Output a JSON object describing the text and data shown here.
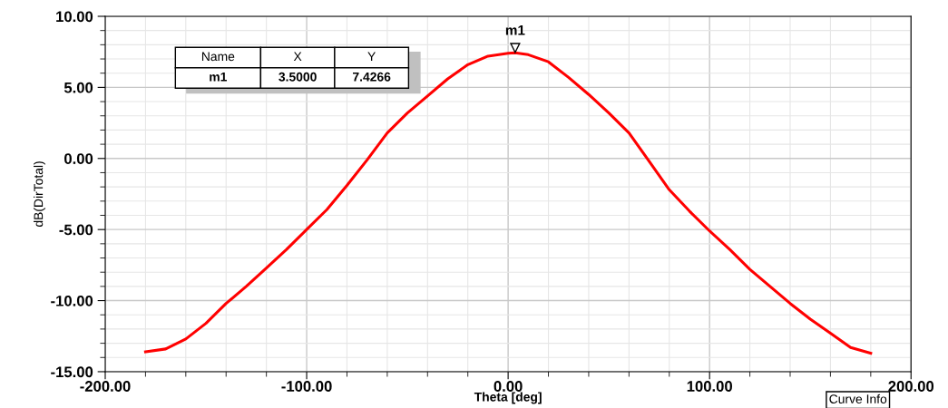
{
  "chart_data": {
    "type": "line",
    "xlabel": "Theta [deg]",
    "ylabel": "dB(DirTotal)",
    "x": [
      -180,
      -170,
      -160,
      -150,
      -140,
      -130,
      -120,
      -110,
      -100,
      -90,
      -80,
      -70,
      -60,
      -50,
      -40,
      -30,
      -20,
      -10,
      0,
      3.5,
      10,
      20,
      30,
      40,
      50,
      60,
      70,
      80,
      90,
      100,
      110,
      120,
      130,
      140,
      150,
      160,
      170,
      180
    ],
    "series": [
      {
        "color": "#ff0000",
        "values": [
          -13.6,
          -13.4,
          -12.7,
          -11.6,
          -10.2,
          -9.0,
          -7.7,
          -6.4,
          -5.0,
          -3.6,
          -1.9,
          -0.1,
          1.8,
          3.2,
          4.4,
          5.6,
          6.6,
          7.2,
          7.4,
          7.43,
          7.3,
          6.8,
          5.7,
          4.5,
          3.2,
          1.8,
          -0.2,
          -2.2,
          -3.7,
          -5.1,
          -6.4,
          -7.8,
          -9.0,
          -10.2,
          -11.3,
          -12.3,
          -13.3,
          -13.7
        ]
      }
    ],
    "xlim": [
      -200,
      200
    ],
    "ylim": [
      -15,
      10
    ],
    "xticks": [
      {
        "value": -200,
        "label": "-200.00"
      },
      {
        "value": -180,
        "label": null
      },
      {
        "value": -160,
        "label": null
      },
      {
        "value": -140,
        "label": null
      },
      {
        "value": -120,
        "label": null
      },
      {
        "value": -100,
        "label": "-100.00"
      },
      {
        "value": -80,
        "label": null
      },
      {
        "value": -60,
        "label": null
      },
      {
        "value": -40,
        "label": null
      },
      {
        "value": -20,
        "label": null
      },
      {
        "value": 0,
        "label": "0.00"
      },
      {
        "value": 20,
        "label": null
      },
      {
        "value": 40,
        "label": null
      },
      {
        "value": 60,
        "label": null
      },
      {
        "value": 80,
        "label": null
      },
      {
        "value": 100,
        "label": "100.00"
      },
      {
        "value": 120,
        "label": null
      },
      {
        "value": 140,
        "label": null
      },
      {
        "value": 160,
        "label": null
      },
      {
        "value": 180,
        "label": null
      },
      {
        "value": 200,
        "label": "200.00"
      }
    ],
    "yticks": [
      {
        "value": -15,
        "label": "-15.00"
      },
      {
        "value": -14,
        "label": null
      },
      {
        "value": -13,
        "label": null
      },
      {
        "value": -12,
        "label": null
      },
      {
        "value": -11,
        "label": null
      },
      {
        "value": -10,
        "label": "-10.00"
      },
      {
        "value": -9,
        "label": null
      },
      {
        "value": -8,
        "label": null
      },
      {
        "value": -7,
        "label": null
      },
      {
        "value": -6,
        "label": null
      },
      {
        "value": -5,
        "label": "-5.00"
      },
      {
        "value": -4,
        "label": null
      },
      {
        "value": -3,
        "label": null
      },
      {
        "value": -2,
        "label": null
      },
      {
        "value": -1,
        "label": null
      },
      {
        "value": 0,
        "label": "0.00"
      },
      {
        "value": 1,
        "label": null
      },
      {
        "value": 2,
        "label": null
      },
      {
        "value": 3,
        "label": null
      },
      {
        "value": 4,
        "label": null
      },
      {
        "value": 5,
        "label": "5.00"
      },
      {
        "value": 6,
        "label": null
      },
      {
        "value": 7,
        "label": null
      },
      {
        "value": 8,
        "label": null
      },
      {
        "value": 9,
        "label": null
      },
      {
        "value": 10,
        "label": "10.00"
      }
    ],
    "grid": true,
    "legend": false,
    "line_style": "solid",
    "marker": "none",
    "annotations": [
      {
        "text": "m1",
        "x": 3.5,
        "y": 7.4266
      },
      "Name",
      "X",
      "Y",
      "m1",
      "3.5000",
      "7.4266",
      "Curve Info"
    ]
  }
}
